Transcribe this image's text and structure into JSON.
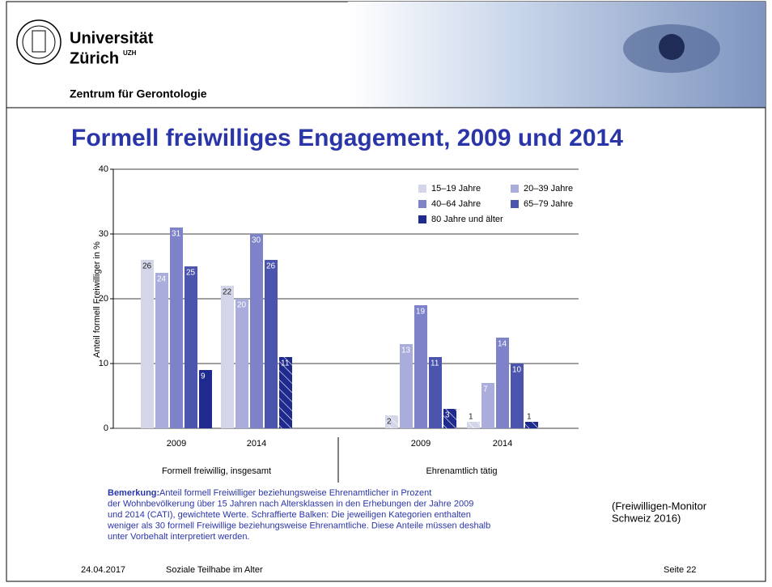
{
  "header": {
    "university": "Universität",
    "city": "Zürich",
    "city_sup": "UZH",
    "department": "Zentrum für Gerontologie"
  },
  "slide_title": "Formell freiwilliges Engagement, 2009 und 2014",
  "chart_data": {
    "type": "bar",
    "ylabel": "Anteil formell Freiwilliger in %",
    "categories": [
      "2009",
      "2014",
      "2009",
      "2014"
    ],
    "sections": [
      "Formell freiwillig, insgesamt",
      "Ehrenamtlich tätig"
    ],
    "ylim": [
      0,
      40
    ],
    "yticks": [
      0,
      10,
      20,
      30,
      40
    ],
    "grid": true,
    "legend": "top-right",
    "series": [
      {
        "name": "15–19 Jahre",
        "color": "#d3d5e9",
        "values": [
          26,
          22,
          2,
          1
        ],
        "hatched": [
          false,
          false,
          true,
          true
        ]
      },
      {
        "name": "20–39 Jahre",
        "color": "#aaaddb",
        "values": [
          24,
          20,
          13,
          7
        ],
        "hatched": [
          false,
          false,
          false,
          false
        ]
      },
      {
        "name": "40–64 Jahre",
        "color": "#7e83c9",
        "values": [
          31,
          30,
          19,
          14
        ],
        "hatched": [
          false,
          false,
          false,
          false
        ]
      },
      {
        "name": "65–79 Jahre",
        "color": "#4b55ad",
        "values": [
          25,
          26,
          11,
          10
        ],
        "hatched": [
          false,
          false,
          false,
          false
        ]
      },
      {
        "name": "80 Jahre und älter",
        "color": "#1e2a8e",
        "values": [
          9,
          11,
          3,
          1
        ],
        "hatched": [
          false,
          true,
          true,
          true
        ]
      }
    ]
  },
  "remark": {
    "label": "Bemerkung:",
    "lines": [
      " Anteil formell Freiwilliger beziehungsweise Ehrenamtlicher in Prozent",
      "der Wohnbevölkerung über 15 Jahren nach Altersklassen in den Erhebungen der Jahre 2009",
      "und 2014 (CATI), gewichtete Werte. Schraffierte Balken: Die jeweiligen Kategorien enthalten",
      "weniger als 30 formell Freiwillige beziehungsweise Ehrenamtliche. Diese Anteile müssen deshalb",
      "unter Vorbehalt interpretiert werden."
    ]
  },
  "source": [
    "(Freiwilligen-Monitor",
    "Schweiz 2016)"
  ],
  "footer": {
    "date": "24.04.2017",
    "topic": "Soziale Teilhabe im Alter",
    "page": "Seite 22"
  }
}
